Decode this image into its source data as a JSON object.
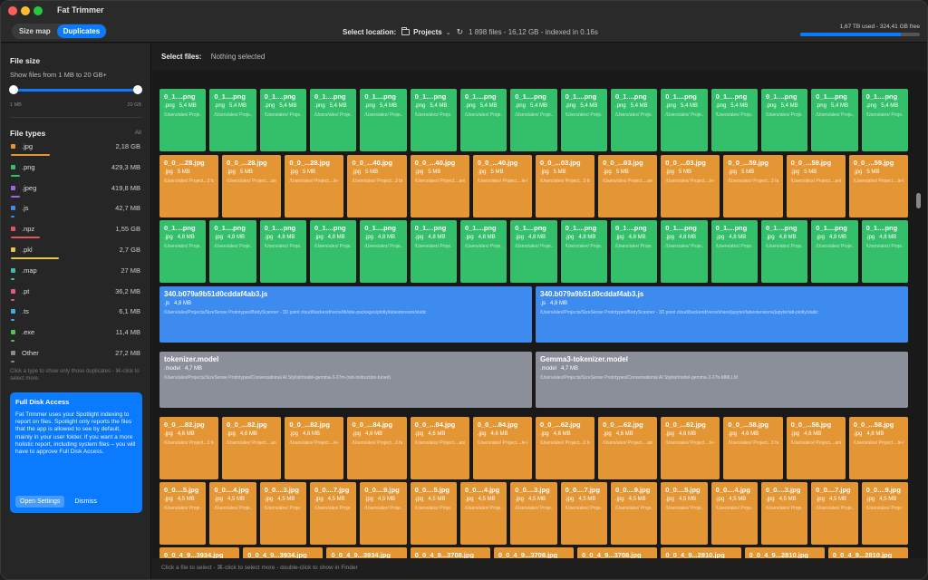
{
  "app": {
    "title": "Fat Trimmer"
  },
  "toolbar": {
    "tabs": [
      {
        "label": "Size map"
      },
      {
        "label": "Duplicates"
      }
    ],
    "select_location_label": "Select location:",
    "location": "Projects",
    "stats": "1 898 files - 16,12 GB - indexed in 0.16s",
    "disk_text": "1,67 TB used - 324,41 GB free",
    "disk_used_fraction": 0.84
  },
  "sidebar": {
    "file_size_title": "File size",
    "file_size_desc": "Show files from 1 MB to 20 GB+",
    "slider_min": "1 MB",
    "slider_max": "20 GB",
    "file_types_title": "File types",
    "all_label": "All",
    "types": [
      {
        "name": ".jpg",
        "size": "2,18 GB",
        "color": "#e59634",
        "fraction": 0.3
      },
      {
        "name": ".png",
        "size": "429,3 MB",
        "color": "#34c06a",
        "fraction": 0.07
      },
      {
        "name": ".jpeg",
        "size": "419,8 MB",
        "color": "#a066e0",
        "fraction": 0.07
      },
      {
        "name": ".js",
        "size": "42,7 MB",
        "color": "#3e8bf0",
        "fraction": 0.02
      },
      {
        "name": ".npz",
        "size": "1,55 GB",
        "color": "#e0565a",
        "fraction": 0.22
      },
      {
        "name": ".pkl",
        "size": "2,7 GB",
        "color": "#e8c547",
        "fraction": 0.37
      },
      {
        "name": ".map",
        "size": "27 MB",
        "color": "#3bc0b0",
        "fraction": 0.01
      },
      {
        "name": ".pt",
        "size": "36,2 MB",
        "color": "#e05a8f",
        "fraction": 0.01
      },
      {
        "name": ".ts",
        "size": "6,1 MB",
        "color": "#3eb0e0",
        "fraction": 0.005
      },
      {
        "name": ".exe",
        "size": "11,4 MB",
        "color": "#5ac050",
        "fraction": 0.005
      },
      {
        "name": "Other",
        "size": "27,2 MB",
        "color": "#8a8a8a",
        "fraction": 0.01
      }
    ],
    "hint": "Click a type to show only those duplicates - ⌘-click to select more.",
    "fda": {
      "title": "Full Disk Access",
      "body": "Fat Trimmer uses your Spotlight indexing to report on files. Spotlight only reports the files that the app is allowed to see by default, mainly in your user folder. If you want a more holistic report, including system files – you will have to approve Full Disk Access.",
      "open_settings": "Open Settings",
      "dismiss": "Dismiss"
    }
  },
  "main": {
    "select_files_label": "Select files:",
    "select_files_value": "Nothing selected",
    "footer": "Click a file to select - ⌘-click to select more - double-click to show in Finder"
  },
  "rows": [
    {
      "color": "green",
      "tiles": [
        {
          "name": "0_1....png",
          "ext": ".png",
          "size": "5,4 MB",
          "path": "/Users/alex/ Proje.../ faces"
        },
        {
          "name": "0_1....png",
          "ext": ".png",
          "size": "5,4 MB",
          "path": "/Users/alex/ Proje....female"
        },
        {
          "name": "0_1....png",
          "ext": ".png",
          "size": "5,4 MB",
          "path": "/Users/alex/ Proje.../ faces"
        },
        {
          "name": "0_1....png",
          "ext": ".png",
          "size": "5,4 MB",
          "path": "/Users/alex/ Proje....female"
        },
        {
          "name": "0_1....png",
          "ext": ".png",
          "size": "5,4 MB",
          "path": "/Users/alex/ Proje.../ faces"
        },
        {
          "name": "0_1....png",
          "ext": ".png",
          "size": "5,4 MB",
          "path": "/Users/alex/ Proje....emale"
        },
        {
          "name": "0_1....png",
          "ext": ".png",
          "size": "5,4 MB",
          "path": "/Users/alex/ Proje....female"
        },
        {
          "name": "0_1....png",
          "ext": ".png",
          "size": "5,4 MB",
          "path": "/Users/alex/ Proje.../ faces"
        },
        {
          "name": "0_1....png",
          "ext": ".png",
          "size": "5,4 MB",
          "path": "/Users/alex/ Proje....emale"
        },
        {
          "name": "0_1....png",
          "ext": ".png",
          "size": "5,4 MB",
          "path": "/Users/alex/ Proje....emale"
        },
        {
          "name": "0_1....png",
          "ext": ".png",
          "size": "5,4 MB",
          "path": "/Users/alex/ Proje....emale"
        },
        {
          "name": "0_1....png",
          "ext": ".png",
          "size": "5,4 MB",
          "path": "/Users/alex/ Proje.../ faces"
        },
        {
          "name": "0_1....png",
          "ext": ".png",
          "size": "5,4 MB",
          "path": "/Users/alex/ Proje....emale"
        },
        {
          "name": "0_1....png",
          "ext": ".png",
          "size": "5,4 MB",
          "path": "/Users/alex/ Proje....female"
        },
        {
          "name": "0_1....png",
          "ext": ".png",
          "size": "5,4 MB",
          "path": "/Users/alex/ Proje.../ faces"
        }
      ]
    },
    {
      "color": "orange",
      "tiles": [
        {
          "name": "0_0_...28.jpg",
          "ext": ".jpg",
          "size": "5 MB",
          "path": "/Users/alex/ Project...3 faces"
        },
        {
          "name": "0_0_...28.jpg",
          "ext": ".jpg",
          "size": "5 MB",
          "path": "/Users/alex/ Project....ani/male"
        },
        {
          "name": "0_0_...28.jpg",
          "ext": ".jpg",
          "size": "5 MB",
          "path": "/Users/alex/ Project....le-Faces"
        },
        {
          "name": "0_0_...40.jpg",
          "ext": ".jpg",
          "size": "5 MB",
          "path": "/Users/alex/ Project...3 faces"
        },
        {
          "name": "0_0_...40.jpg",
          "ext": ".jpg",
          "size": "5 MB",
          "path": "/Users/alex/ Project....ani/male"
        },
        {
          "name": "0_0_...40.jpg",
          "ext": ".jpg",
          "size": "5 MB",
          "path": "/Users/alex/ Project....le-Faces"
        },
        {
          "name": "0_0_...03.jpg",
          "ext": ".jpg",
          "size": "5 MB",
          "path": "/Users/alex/ Project...3 faces"
        },
        {
          "name": "0_0_...03.jpg",
          "ext": ".jpg",
          "size": "5 MB",
          "path": "/Users/alex/ Project....ani/male"
        },
        {
          "name": "0_0_...03.jpg",
          "ext": ".jpg",
          "size": "5 MB",
          "path": "/Users/alex/ Project....le-Faces"
        },
        {
          "name": "0_0_...59.jpg",
          "ext": ".jpg",
          "size": "5 MB",
          "path": "/Users/alex/ Project...3 faces"
        },
        {
          "name": "0_0_...59.jpg",
          "ext": ".jpg",
          "size": "5 MB",
          "path": "/Users/alex/ Project....ani/male"
        },
        {
          "name": "0_0_...59.jpg",
          "ext": ".jpg",
          "size": "5 MB",
          "path": "/Users/alex/ Project....le-Faces"
        }
      ]
    },
    {
      "color": "green",
      "tiles": [
        {
          "name": "0_1....png",
          "ext": ".jpg",
          "size": "4,8 MB",
          "path": "/Users/alex/ Proje.../ faces"
        },
        {
          "name": "0_1....png",
          "ext": ".jpg",
          "size": "4,8 MB",
          "path": "/Users/alex/ Proje.../ faces"
        },
        {
          "name": "0_1....png",
          "ext": ".jpg",
          "size": "4,8 MB",
          "path": "/Users/alex/ Proje.../ faces"
        },
        {
          "name": "0_1....png",
          "ext": ".jpg",
          "size": "4,8 MB",
          "path": "/Users/alex/ Proje....emale"
        },
        {
          "name": "0_1....png",
          "ext": ".jpg",
          "size": "4,8 MB",
          "path": "/Users/alex/ Proje.../ faces"
        },
        {
          "name": "0_1....png",
          "ext": ".jpg",
          "size": "4,8 MB",
          "path": "/Users/alex/ Proje....emale"
        },
        {
          "name": "0_1....png",
          "ext": ".jpg",
          "size": "4,8 MB",
          "path": "/Users/alex/ Proje.../ faces"
        },
        {
          "name": "0_1....png",
          "ext": ".jpg",
          "size": "4,8 MB",
          "path": "/Users/alex/ Proje....female"
        },
        {
          "name": "0_1....png",
          "ext": ".jpg",
          "size": "4,8 MB",
          "path": "/Users/alex/ Proje.../ faces"
        },
        {
          "name": "0_1....png",
          "ext": ".jpg",
          "size": "4,8 MB",
          "path": "/Users/alex/ Proje....female"
        },
        {
          "name": "0_1....png",
          "ext": ".jpg",
          "size": "4,8 MB",
          "path": "/Users/alex/ Proje....emale"
        },
        {
          "name": "0_1....png",
          "ext": ".jpg",
          "size": "4,8 MB",
          "path": "/Users/alex/ Proje.../ faces"
        },
        {
          "name": "0_1....png",
          "ext": ".jpg",
          "size": "4,8 MB",
          "path": "/Users/alex/ Proje....emale"
        },
        {
          "name": "0_1....png",
          "ext": ".jpg",
          "size": "4,8 MB",
          "path": "/Users/alex/ Proje....female"
        },
        {
          "name": "0_1....png",
          "ext": ".jpg",
          "size": "4,8 MB",
          "path": "/Users/alex/ Proje.../ faces"
        }
      ]
    },
    {
      "color": "blue",
      "tiles": [
        {
          "name": "340.b079a9b51d0cddaf4ab3.js",
          "ext": ".js",
          "size": "4,8 MB",
          "path": "/Users/alex/Projects/SizeSense Prototypes/BodyScanner - 3D point cloud/backend/venv/lib/site-packages/plotly/labextension/static"
        },
        {
          "name": "340.b079a9b51d0cddaf4ab3.js",
          "ext": ".js",
          "size": "4,8 MB",
          "path": "/Users/alex/Projects/SizeSense Prototypes/BodyScanner - 3D point cloud/backend/venv/share/jupyter/labextensions/jupyterlab-plotly/static"
        }
      ]
    },
    {
      "color": "gray",
      "tiles": [
        {
          "name": "tokenizer.model",
          "ext": ".model",
          "size": "4,7 MB",
          "path": "/Users/alex/Projects/SizeSense Prototypes/Conversational AI Stylist/model-gemma-3-27m-(not-instruction-tuned)"
        },
        {
          "name": "Gemma3-tokenizer.model",
          "ext": ".model",
          "size": "4,7 MB",
          "path": "/Users/alex/Projects/SizeSense Prototypes/Conversational AI Stylist/model-gemma-3-27b-MMLLM"
        }
      ]
    },
    {
      "color": "orange",
      "tiles": [
        {
          "name": "0_0_...82.jpg",
          "ext": ".jpg",
          "size": "4,6 MB",
          "path": "/Users/alex/ Project...3 faces"
        },
        {
          "name": "0_0_...82.jpg",
          "ext": ".jpg",
          "size": "4,6 MB",
          "path": "/Users/alex/ Project....ani/male"
        },
        {
          "name": "0_0_...82.jpg",
          "ext": ".jpg",
          "size": "4,6 MB",
          "path": "/Users/alex/ Project....le-Faces"
        },
        {
          "name": "0_0_...84.jpg",
          "ext": ".jpg",
          "size": "4,6 MB",
          "path": "/Users/alex/ Project...3 faces"
        },
        {
          "name": "0_0_...84.jpg",
          "ext": ".jpg",
          "size": "4,6 MB",
          "path": "/Users/alex/ Project....ani/male"
        },
        {
          "name": "0_0_...84.jpg",
          "ext": ".jpg",
          "size": "4,6 MB",
          "path": "/Users/alex/ Project....le-Faces"
        },
        {
          "name": "0_0_...62.jpg",
          "ext": ".jpg",
          "size": "4,6 MB",
          "path": "/Users/alex/ Project...3 faces"
        },
        {
          "name": "0_0_...62.jpg",
          "ext": ".jpg",
          "size": "4,6 MB",
          "path": "/Users/alex/ Project....ani/male"
        },
        {
          "name": "0_0_...62.jpg",
          "ext": ".jpg",
          "size": "4,6 MB",
          "path": "/Users/alex/ Project....le-Faces"
        },
        {
          "name": "0_0_...58.jpg",
          "ext": ".jpg",
          "size": "4,6 MB",
          "path": "/Users/alex/ Project...3 faces"
        },
        {
          "name": "0_0_...58.jpg",
          "ext": ".jpg",
          "size": "4,6 MB",
          "path": "/Users/alex/ Project....ani/male"
        },
        {
          "name": "0_0_...58.jpg",
          "ext": ".jpg",
          "size": "4,6 MB",
          "path": "/Users/alex/ Project....le-Faces"
        }
      ]
    },
    {
      "color": "orange",
      "tiles": [
        {
          "name": "0_0....5.jpg",
          "ext": ".jpg",
          "size": "4,5 MB",
          "path": "/Users/alex/ Proje...3 faces"
        },
        {
          "name": "0_0....4.jpg",
          "ext": ".jpg",
          "size": "4,5 MB",
          "path": "/Users/alex/ Proje...3 faces"
        },
        {
          "name": "0_0....3.jpg",
          "ext": ".jpg",
          "size": "4,5 MB",
          "path": "/Users/alex/ Proje...3 faces"
        },
        {
          "name": "0_0....7.jpg",
          "ext": ".jpg",
          "size": "4,5 MB",
          "path": "/Users/alex/ Proje...3 faces"
        },
        {
          "name": "0_0....9.jpg",
          "ext": ".jpg",
          "size": "4,5 MB",
          "path": "/Users/alex/ Proje...3 faces"
        },
        {
          "name": "0_0....5.jpg",
          "ext": ".jpg",
          "size": "4,5 MB",
          "path": "/Users/alex/ Proje.../male"
        },
        {
          "name": "0_0....4.jpg",
          "ext": ".jpg",
          "size": "4,5 MB",
          "path": "/Users/alex/ Proje.../male"
        },
        {
          "name": "0_0....3.jpg",
          "ext": ".jpg",
          "size": "4,5 MB",
          "path": "/Users/alex/ Proje.../male"
        },
        {
          "name": "0_0....7.jpg",
          "ext": ".jpg",
          "size": "4,5 MB",
          "path": "/Users/alex/ Proje.../male"
        },
        {
          "name": "0_0....9.jpg",
          "ext": ".jpg",
          "size": "4,5 MB",
          "path": "/Users/alex/ Proje.../male"
        },
        {
          "name": "0_0....5.jpg",
          "ext": ".jpg",
          "size": "4,5 MB",
          "path": "/Users/alex/ Proje...Faces"
        },
        {
          "name": "0_0....4.jpg",
          "ext": ".jpg",
          "size": "4,5 MB",
          "path": "/Users/alex/ Proje...Faces"
        },
        {
          "name": "0_0....3.jpg",
          "ext": ".jpg",
          "size": "4,5 MB",
          "path": "/Users/alex/ Proje...Faces"
        },
        {
          "name": "0_0....7.jpg",
          "ext": ".jpg",
          "size": "4,5 MB",
          "path": "/Users/alex/ Proje...Faces"
        },
        {
          "name": "0_0....9.jpg",
          "ext": ".jpg",
          "size": "4,5 MB",
          "path": "/Users/alex/ Proje...Faces"
        }
      ]
    },
    {
      "color": "orange",
      "tiles": [
        {
          "name": "0_0_4_9...3934.jpg",
          "ext": "",
          "size": "",
          "path": ""
        },
        {
          "name": "0_0_4_9...3934.jpg",
          "ext": "",
          "size": "",
          "path": ""
        },
        {
          "name": "0_0_4_9...3934.jpg",
          "ext": "",
          "size": "",
          "path": ""
        },
        {
          "name": "0_0_4_9...3708.jpg",
          "ext": "",
          "size": "",
          "path": ""
        },
        {
          "name": "0_0_4_9...3708.jpg",
          "ext": "",
          "size": "",
          "path": ""
        },
        {
          "name": "0_0_4_9...3708.jpg",
          "ext": "",
          "size": "",
          "path": ""
        },
        {
          "name": "0_0_4_9...2810.jpg",
          "ext": "",
          "size": "",
          "path": ""
        },
        {
          "name": "0_0_4_9...2810.jpg",
          "ext": "",
          "size": "",
          "path": ""
        },
        {
          "name": "0_0_4_9...2810.jpg",
          "ext": "",
          "size": "",
          "path": ""
        }
      ]
    }
  ]
}
